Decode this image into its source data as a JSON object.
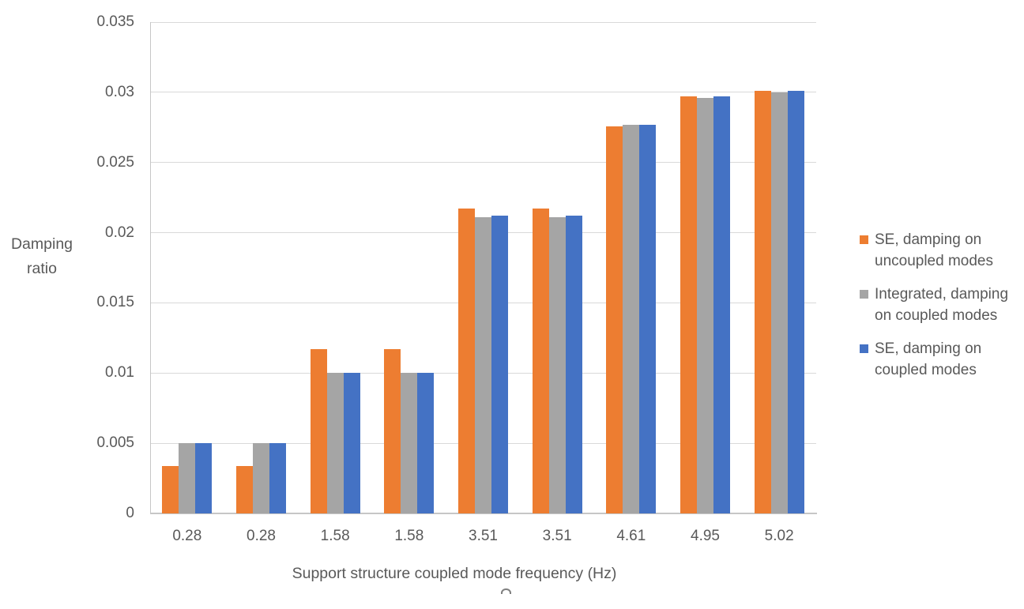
{
  "chart_data": {
    "type": "bar",
    "title": "",
    "categories": [
      "0.28",
      "0.28",
      "1.58",
      "1.58",
      "3.51",
      "3.51",
      "4.61",
      "4.95",
      "5.02"
    ],
    "series": [
      {
        "name": "SE, damping on uncoupled modes",
        "color": "#ED7D31",
        "values": [
          0.0034,
          0.0034,
          0.0117,
          0.0117,
          0.0217,
          0.0217,
          0.0276,
          0.0297,
          0.0301
        ]
      },
      {
        "name": "Integrated, damping on coupled modes",
        "color": "#A5A5A5",
        "values": [
          0.005,
          0.005,
          0.01,
          0.01,
          0.0211,
          0.0211,
          0.0277,
          0.0296,
          0.03
        ]
      },
      {
        "name": "SE, damping on coupled modes",
        "color": "#4472C4",
        "values": [
          0.005,
          0.005,
          0.01,
          0.01,
          0.0212,
          0.0212,
          0.0277,
          0.0297,
          0.0301
        ]
      }
    ],
    "xlabel": "Support structure coupled mode frequency (Hz)",
    "ylabel": "Damping ratio",
    "ylim": [
      0,
      0.035
    ],
    "ytick_step": 0.005,
    "yticks": [
      "0",
      "0.005",
      "0.01",
      "0.015",
      "0.02",
      "0.025",
      "0.03",
      "0.035"
    ],
    "grid": true,
    "legend_position": "right",
    "colors": {
      "text": "#595959",
      "gridline": "#D9D9D9",
      "axis_line": "#C6C6C6",
      "background": "#FFFFFF"
    }
  }
}
